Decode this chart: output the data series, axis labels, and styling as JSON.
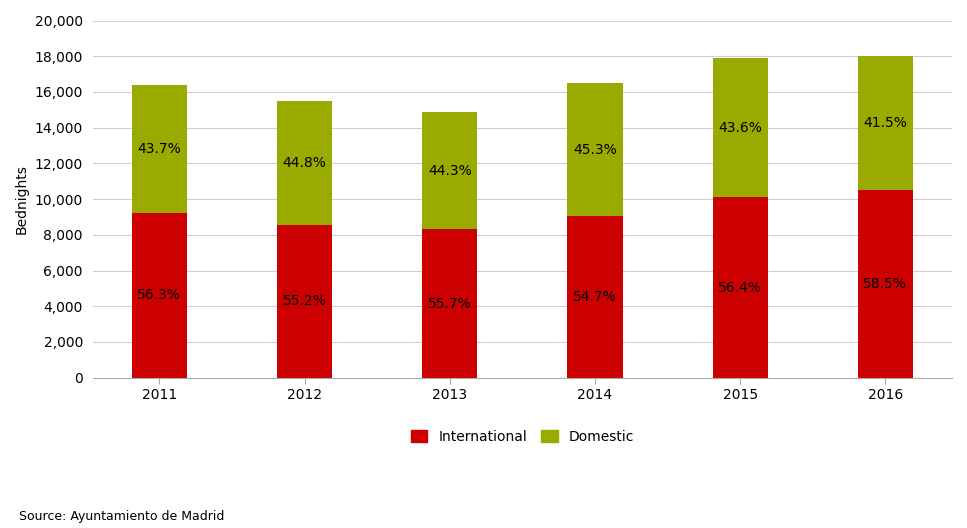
{
  "years": [
    "2011",
    "2012",
    "2013",
    "2014",
    "2015",
    "2016"
  ],
  "international": [
    9233,
    8556,
    8299,
    9026,
    10096,
    10530
  ],
  "domestic": [
    7167,
    6944,
    6601,
    7474,
    7804,
    7470
  ],
  "int_pct": [
    "56.3%",
    "55.2%",
    "55.7%",
    "54.7%",
    "56.4%",
    "58.5%"
  ],
  "dom_pct": [
    "43.7%",
    "44.8%",
    "44.3%",
    "45.3%",
    "43.6%",
    "41.5%"
  ],
  "int_color": "#cc0000",
  "dom_color": "#99aa00",
  "ylabel": "Bednights",
  "ylim": [
    0,
    20000
  ],
  "yticks": [
    0,
    2000,
    4000,
    6000,
    8000,
    10000,
    12000,
    14000,
    16000,
    18000,
    20000
  ],
  "source": "Source: Ayuntamiento de Madrid",
  "legend_int": "International",
  "legend_dom": "Domestic",
  "bar_width": 0.38,
  "label_fontsize": 10,
  "tick_fontsize": 10,
  "source_fontsize": 9,
  "background_color": "#ffffff"
}
